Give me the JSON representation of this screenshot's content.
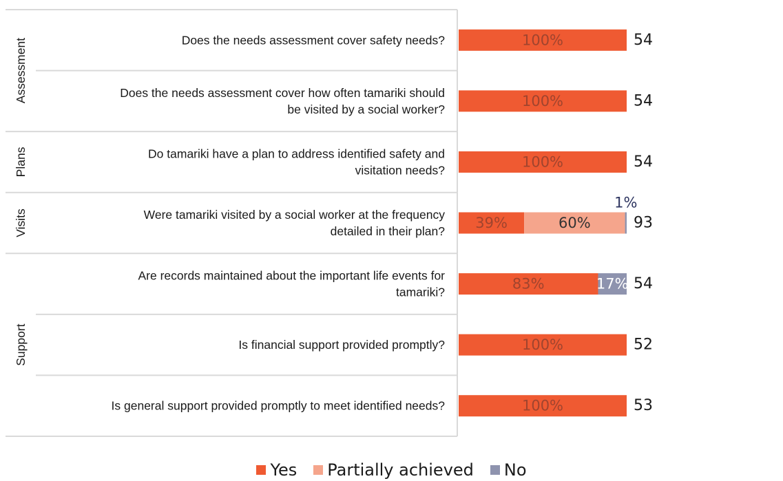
{
  "chart_data": {
    "type": "bar",
    "stacked": true,
    "orientation": "horizontal",
    "groups": [
      {
        "label": "Assessment",
        "rows": [
          0,
          1
        ]
      },
      {
        "label": "Plans",
        "rows": [
          2
        ]
      },
      {
        "label": "Visits",
        "rows": [
          3
        ]
      },
      {
        "label": "Support",
        "rows": [
          4,
          5,
          6
        ]
      }
    ],
    "categories": [
      [
        "Does the needs assessment cover safety needs?"
      ],
      [
        "Does the needs assessment cover how often tamariki should",
        "be visited by a social worker?"
      ],
      [
        "Do tamariki have a plan to address identified safety and",
        "visitation needs?"
      ],
      [
        "Were tamariki visited by a social worker at the frequency",
        "detailed in their plan?"
      ],
      [
        "Are records maintained about the important life events for",
        "tamariki?"
      ],
      [
        "Is financial support provided promptly?"
      ],
      [
        "Is general support provided promptly to meet identified needs?"
      ]
    ],
    "series": [
      {
        "name": "Yes",
        "color": "#ef5a32",
        "label_color": "#a0442e",
        "values": [
          100,
          100,
          100,
          39,
          83,
          100,
          100
        ],
        "labels": [
          "100%",
          "100%",
          "100%",
          "39%",
          "83%",
          "100%",
          "100%"
        ]
      },
      {
        "name": "Partially achieved",
        "color": "#f5a58c",
        "label_color": "#333333",
        "values": [
          0,
          0,
          0,
          60,
          0,
          0,
          0
        ],
        "labels": [
          "",
          "",
          "",
          "60%",
          "",
          "",
          ""
        ]
      },
      {
        "name": "No",
        "color": "#8e93ae",
        "label_color": "#ffffff",
        "values": [
          0,
          0,
          0,
          1,
          17,
          0,
          0
        ],
        "labels": [
          "",
          "",
          "",
          "1%",
          "17%",
          "",
          ""
        ]
      }
    ],
    "n": [
      "54",
      "54",
      "54",
      "93",
      "54",
      "52",
      "53"
    ],
    "legend_position": "bottom-center"
  }
}
